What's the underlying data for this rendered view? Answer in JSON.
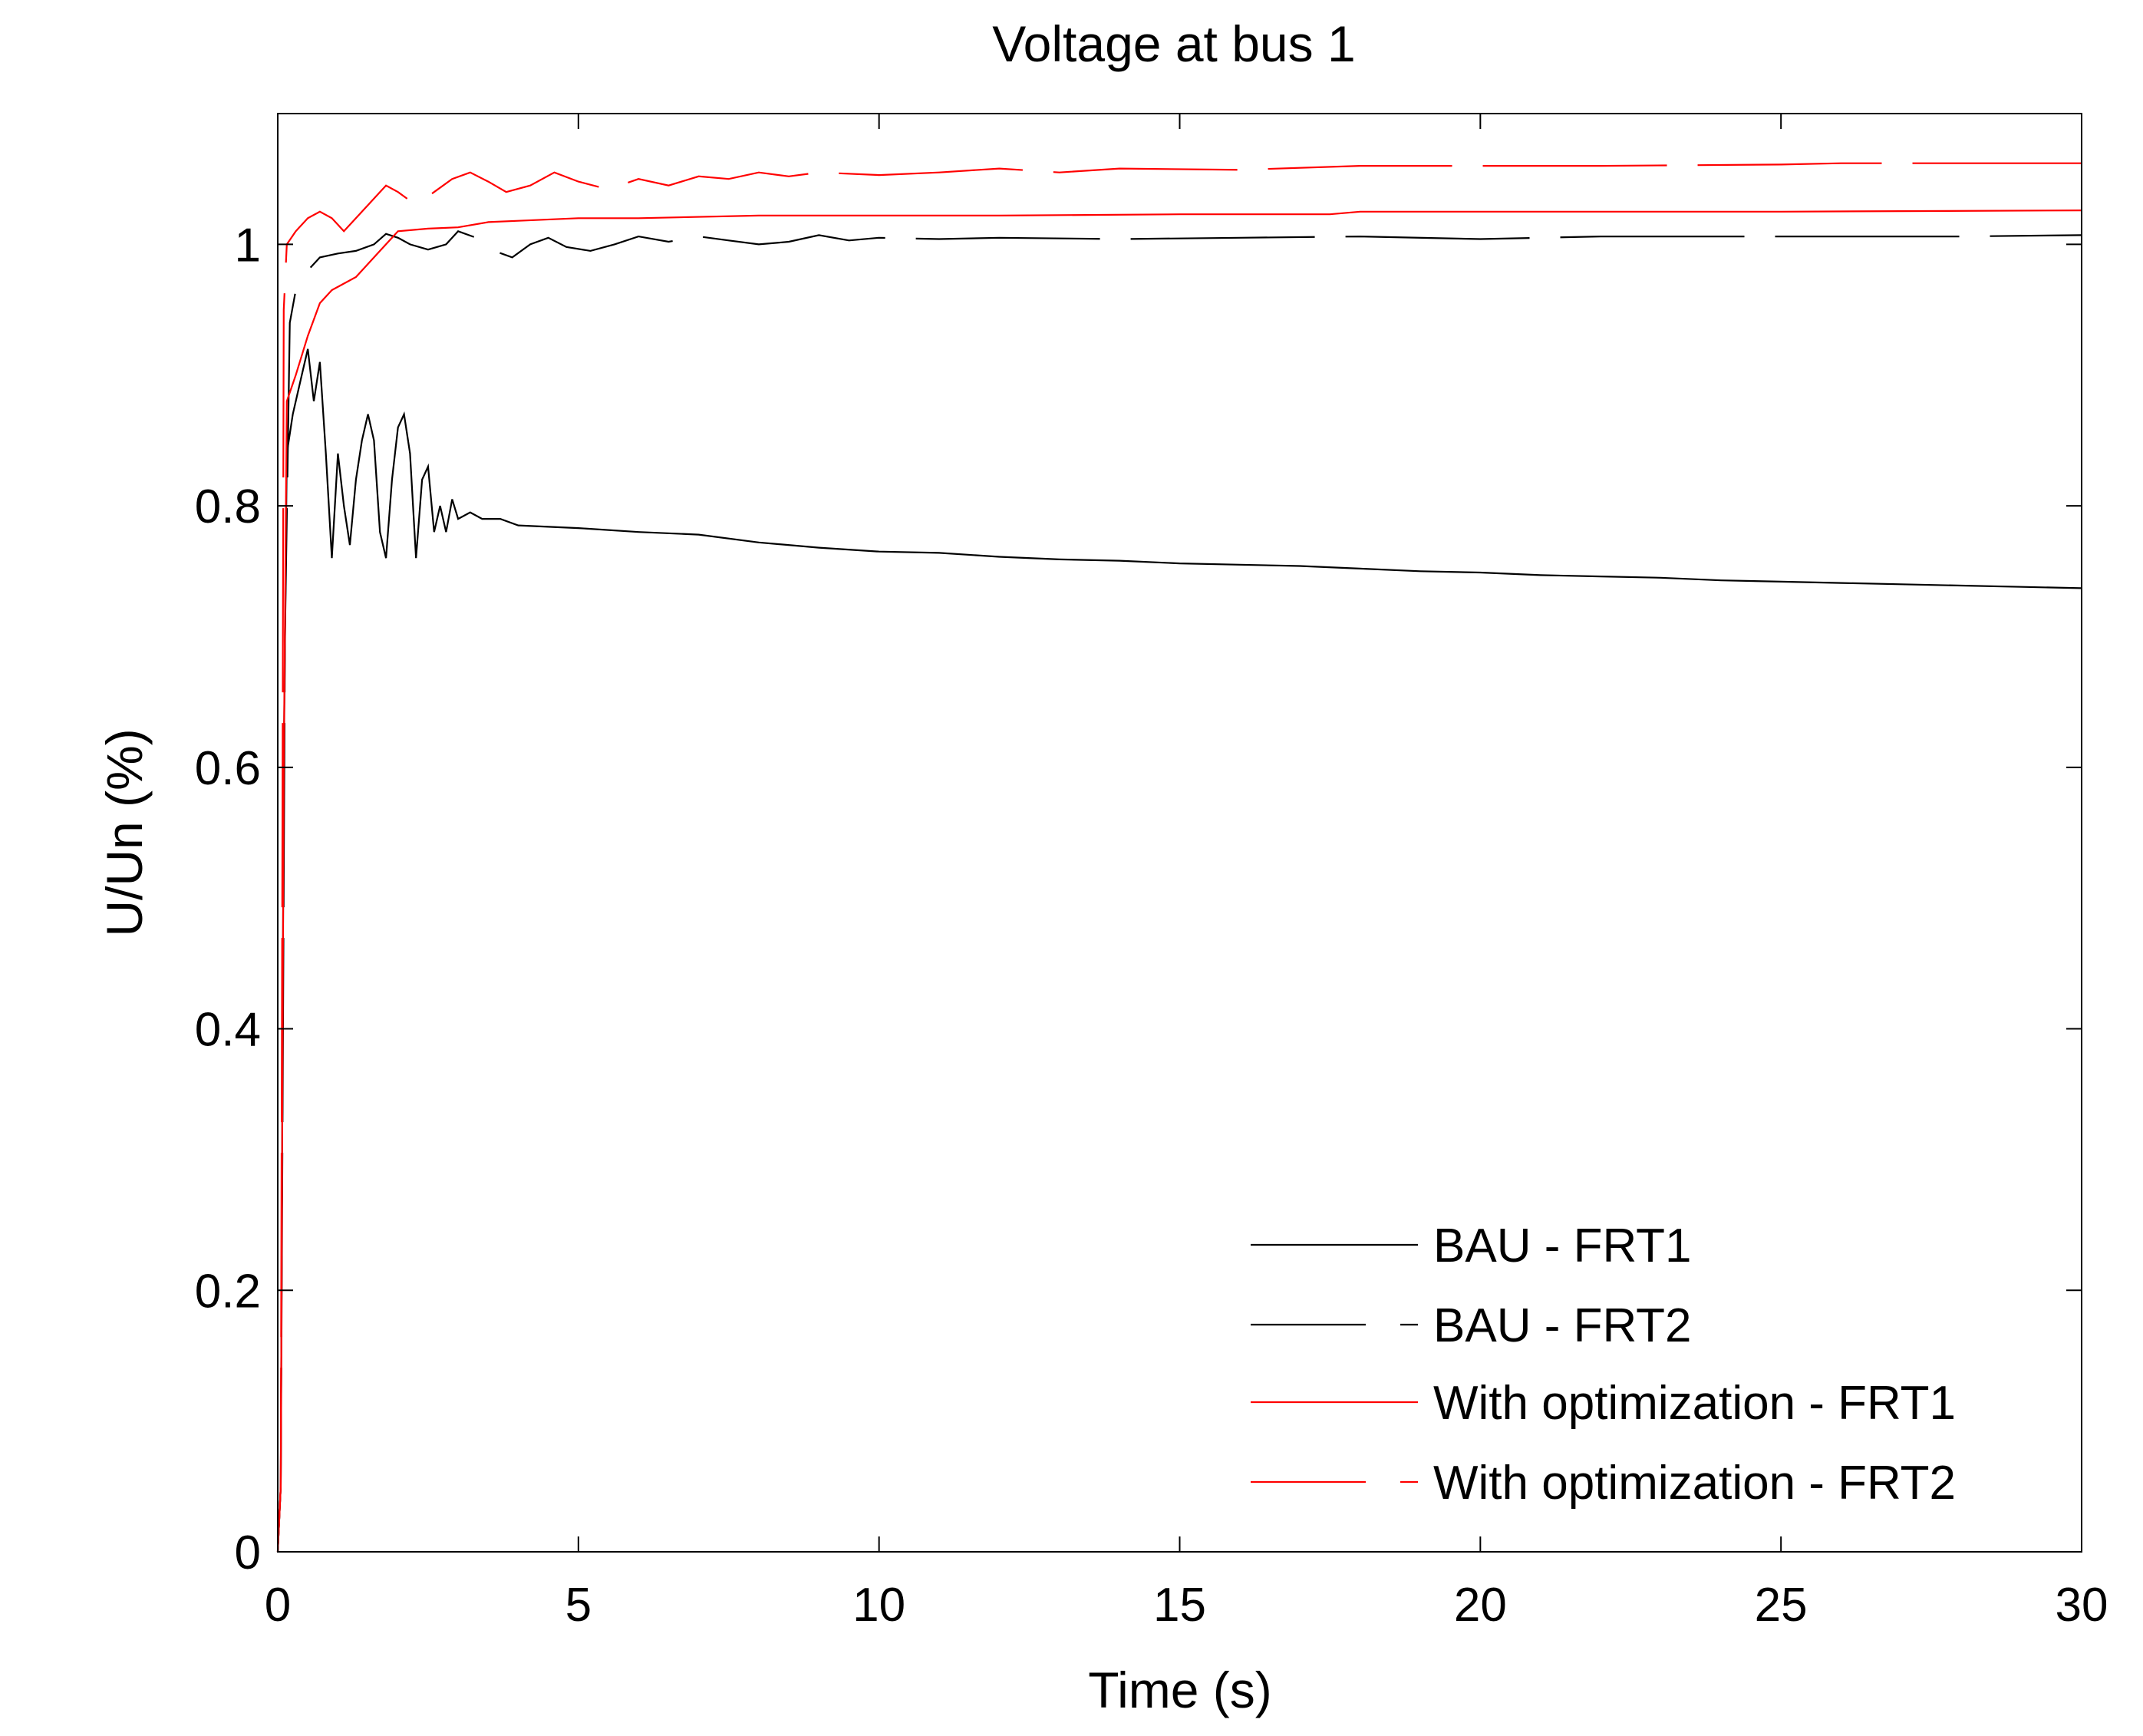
{
  "chart_data": {
    "type": "line",
    "title": "Voltage at bus 1",
    "xlabel": "Time (s)",
    "ylabel": "U/Un (%)",
    "xlim": [
      0,
      30
    ],
    "ylim": [
      0,
      1.1
    ],
    "grid": false,
    "legend_position": "bottom-right",
    "x_ticks": [
      0,
      5,
      10,
      15,
      20,
      25,
      30
    ],
    "x_tick_labels": [
      "0",
      "5",
      "10",
      "15",
      "20",
      "25",
      "30"
    ],
    "y_ticks": [
      0,
      0.2,
      0.4,
      0.6,
      0.8,
      1.0
    ],
    "y_tick_labels": [
      "0",
      "0.2",
      "0.4",
      "0.6",
      "0.8",
      "1"
    ],
    "series": [
      {
        "name": "BAU - FRT1",
        "color": "#000000",
        "dash": "solid",
        "points": [
          [
            0,
            0
          ],
          [
            0.05,
            0.05
          ],
          [
            0.1,
            0.6
          ],
          [
            0.15,
            0.84
          ],
          [
            0.25,
            0.87
          ],
          [
            0.4,
            0.9
          ],
          [
            0.5,
            0.92
          ],
          [
            0.6,
            0.88
          ],
          [
            0.7,
            0.91
          ],
          [
            0.8,
            0.84
          ],
          [
            0.9,
            0.76
          ],
          [
            1.0,
            0.84
          ],
          [
            1.1,
            0.8
          ],
          [
            1.2,
            0.77
          ],
          [
            1.3,
            0.82
          ],
          [
            1.4,
            0.85
          ],
          [
            1.5,
            0.87
          ],
          [
            1.6,
            0.85
          ],
          [
            1.7,
            0.78
          ],
          [
            1.8,
            0.76
          ],
          [
            1.9,
            0.82
          ],
          [
            2.0,
            0.86
          ],
          [
            2.1,
            0.87
          ],
          [
            2.2,
            0.84
          ],
          [
            2.3,
            0.76
          ],
          [
            2.4,
            0.82
          ],
          [
            2.5,
            0.83
          ],
          [
            2.6,
            0.78
          ],
          [
            2.7,
            0.8
          ],
          [
            2.8,
            0.78
          ],
          [
            2.9,
            0.805
          ],
          [
            3.0,
            0.79
          ],
          [
            3.2,
            0.795
          ],
          [
            3.4,
            0.79
          ],
          [
            3.7,
            0.79
          ],
          [
            4.0,
            0.785
          ],
          [
            5,
            0.783
          ],
          [
            6,
            0.78
          ],
          [
            7,
            0.778
          ],
          [
            8,
            0.772
          ],
          [
            9,
            0.768
          ],
          [
            10,
            0.765
          ],
          [
            11,
            0.764
          ],
          [
            12,
            0.761
          ],
          [
            13,
            0.759
          ],
          [
            14,
            0.758
          ],
          [
            15,
            0.756
          ],
          [
            16,
            0.755
          ],
          [
            17,
            0.754
          ],
          [
            18,
            0.752
          ],
          [
            19,
            0.75
          ],
          [
            20,
            0.749
          ],
          [
            21,
            0.747
          ],
          [
            22,
            0.746
          ],
          [
            23,
            0.745
          ],
          [
            24,
            0.743
          ],
          [
            25,
            0.742
          ],
          [
            26,
            0.741
          ],
          [
            27,
            0.74
          ],
          [
            28,
            0.739
          ],
          [
            29,
            0.738
          ],
          [
            30,
            0.737
          ]
        ]
      },
      {
        "name": "BAU - FRT2",
        "color": "#000000",
        "dash": "long-dash",
        "points": [
          [
            0,
            0
          ],
          [
            0.05,
            0.05
          ],
          [
            0.12,
            0.7
          ],
          [
            0.2,
            0.94
          ],
          [
            0.3,
            0.965
          ],
          [
            0.5,
            0.98
          ],
          [
            0.7,
            0.99
          ],
          [
            1.0,
            0.993
          ],
          [
            1.3,
            0.995
          ],
          [
            1.6,
            1.0
          ],
          [
            1.8,
            1.008
          ],
          [
            2.0,
            1.005
          ],
          [
            2.2,
            1.0
          ],
          [
            2.5,
            0.996
          ],
          [
            2.8,
            1.0
          ],
          [
            3.0,
            1.01
          ],
          [
            3.3,
            1.005
          ],
          [
            3.6,
            0.995
          ],
          [
            3.9,
            0.99
          ],
          [
            4.2,
            1.0
          ],
          [
            4.5,
            1.005
          ],
          [
            4.8,
            0.998
          ],
          [
            5.2,
            0.995
          ],
          [
            5.6,
            1.0
          ],
          [
            6.0,
            1.006
          ],
          [
            6.5,
            1.002
          ],
          [
            7.0,
            1.006
          ],
          [
            7.5,
            1.003
          ],
          [
            8.0,
            1.0
          ],
          [
            8.5,
            1.002
          ],
          [
            9.0,
            1.007
          ],
          [
            9.5,
            1.003
          ],
          [
            10,
            1.005
          ],
          [
            11,
            1.004
          ],
          [
            12,
            1.005
          ],
          [
            14,
            1.004
          ],
          [
            16,
            1.005
          ],
          [
            18,
            1.006
          ],
          [
            20,
            1.004
          ],
          [
            22,
            1.006
          ],
          [
            25,
            1.006
          ],
          [
            28,
            1.006
          ],
          [
            30,
            1.007
          ]
        ]
      },
      {
        "name": "With optimization - FRT1",
        "color": "#ff0000",
        "dash": "solid",
        "points": [
          [
            0,
            0
          ],
          [
            0.05,
            0.05
          ],
          [
            0.1,
            0.6
          ],
          [
            0.15,
            0.88
          ],
          [
            0.3,
            0.9
          ],
          [
            0.5,
            0.93
          ],
          [
            0.7,
            0.955
          ],
          [
            0.9,
            0.965
          ],
          [
            1.1,
            0.97
          ],
          [
            1.3,
            0.975
          ],
          [
            1.5,
            0.985
          ],
          [
            1.7,
            0.995
          ],
          [
            2.0,
            1.01
          ],
          [
            2.5,
            1.012
          ],
          [
            3.0,
            1.013
          ],
          [
            3.5,
            1.017
          ],
          [
            4.0,
            1.018
          ],
          [
            5,
            1.02
          ],
          [
            6,
            1.02
          ],
          [
            8,
            1.022
          ],
          [
            10,
            1.022
          ],
          [
            12,
            1.022
          ],
          [
            15,
            1.023
          ],
          [
            17.5,
            1.023
          ],
          [
            18,
            1.025
          ],
          [
            20,
            1.025
          ],
          [
            25,
            1.025
          ],
          [
            30,
            1.026
          ]
        ]
      },
      {
        "name": "With optimization - FRT2",
        "color": "#ff0000",
        "dash": "long-dash",
        "points": [
          [
            0,
            0
          ],
          [
            0.05,
            0.05
          ],
          [
            0.1,
            0.95
          ],
          [
            0.15,
            1.0
          ],
          [
            0.3,
            1.01
          ],
          [
            0.5,
            1.02
          ],
          [
            0.7,
            1.025
          ],
          [
            0.9,
            1.02
          ],
          [
            1.1,
            1.01
          ],
          [
            1.3,
            1.02
          ],
          [
            1.6,
            1.035
          ],
          [
            1.8,
            1.045
          ],
          [
            2.0,
            1.04
          ],
          [
            2.3,
            1.03
          ],
          [
            2.6,
            1.04
          ],
          [
            2.9,
            1.05
          ],
          [
            3.2,
            1.055
          ],
          [
            3.5,
            1.048
          ],
          [
            3.8,
            1.04
          ],
          [
            4.2,
            1.045
          ],
          [
            4.6,
            1.055
          ],
          [
            5.0,
            1.048
          ],
          [
            5.5,
            1.042
          ],
          [
            6.0,
            1.05
          ],
          [
            6.5,
            1.045
          ],
          [
            7.0,
            1.052
          ],
          [
            7.5,
            1.05
          ],
          [
            8.0,
            1.055
          ],
          [
            8.5,
            1.052
          ],
          [
            9,
            1.055
          ],
          [
            10,
            1.053
          ],
          [
            11,
            1.055
          ],
          [
            12,
            1.058
          ],
          [
            13,
            1.055
          ],
          [
            14,
            1.058
          ],
          [
            16,
            1.057
          ],
          [
            18,
            1.06
          ],
          [
            20,
            1.06
          ],
          [
            22,
            1.06
          ],
          [
            25,
            1.061
          ],
          [
            26,
            1.062
          ],
          [
            28,
            1.062
          ],
          [
            30,
            1.062
          ]
        ]
      }
    ]
  }
}
